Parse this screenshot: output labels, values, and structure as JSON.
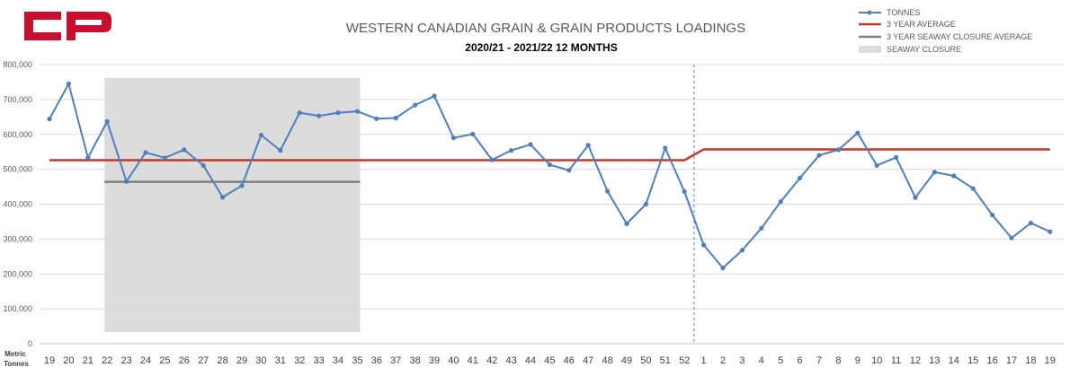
{
  "logo_text": "CP",
  "colors": {
    "tonnes": "#4f7fbd",
    "three_year_avg": "#c0392b",
    "seaway_avg": "#808080",
    "seaway_closure": "#dcdcdc",
    "logo": "#c8102e",
    "grid": "#d9d9d9"
  },
  "chart_data": {
    "type": "line",
    "title": "WESTERN CANADIAN GRAIN & GRAIN PRODUCTS LOADINGS",
    "subtitle": "2020/21 - 2021/22 12 MONTHS",
    "ylabel": "Metric Tonnes",
    "ylim": [
      0,
      800000
    ],
    "yticks": [
      "0",
      "100,000",
      "200,000",
      "300,000",
      "400,000",
      "500,000",
      "600,000",
      "700,000",
      "800,000"
    ],
    "grid": true,
    "legend_position": "top-right",
    "categories": [
      "19",
      "20",
      "21",
      "22",
      "23",
      "24",
      "25",
      "26",
      "27",
      "28",
      "29",
      "30",
      "31",
      "32",
      "33",
      "34",
      "35",
      "36",
      "37",
      "38",
      "39",
      "40",
      "41",
      "42",
      "43",
      "44",
      "45",
      "46",
      "47",
      "48",
      "49",
      "50",
      "51",
      "52",
      "1",
      "2",
      "3",
      "4",
      "5",
      "6",
      "7",
      "8",
      "9",
      "10",
      "11",
      "12",
      "13",
      "14",
      "15",
      "16",
      "17",
      "18",
      "19"
    ],
    "series": [
      {
        "name": "TONNES",
        "type": "line-markers",
        "values": [
          644000,
          745000,
          533000,
          637000,
          465000,
          548000,
          533000,
          556000,
          511000,
          420000,
          453000,
          598000,
          554000,
          662000,
          653000,
          662000,
          666000,
          645000,
          647000,
          684000,
          710000,
          590000,
          601000,
          527000,
          554000,
          571000,
          513000,
          497000,
          569000,
          437000,
          344000,
          400000,
          561000,
          436000,
          283000,
          217000,
          268000,
          331000,
          407000,
          475000,
          540000,
          556000,
          604000,
          511000,
          534000,
          419000,
          492000,
          481000,
          445000,
          369000,
          303000,
          346000,
          321000
        ]
      },
      {
        "name": "3 YEAR AVERAGE",
        "type": "line",
        "values": [
          526000,
          526000,
          526000,
          526000,
          526000,
          526000,
          526000,
          526000,
          526000,
          526000,
          526000,
          526000,
          526000,
          526000,
          526000,
          526000,
          526000,
          526000,
          526000,
          526000,
          526000,
          526000,
          526000,
          526000,
          526000,
          526000,
          526000,
          526000,
          526000,
          526000,
          526000,
          526000,
          526000,
          526000,
          557000,
          557000,
          557000,
          557000,
          557000,
          557000,
          557000,
          557000,
          557000,
          557000,
          557000,
          557000,
          557000,
          557000,
          557000,
          557000,
          557000,
          557000,
          557000
        ]
      },
      {
        "name": "3 YEAR SEAWAY CLOSURE AVERAGE",
        "type": "line",
        "start": "22",
        "end": "35",
        "value": 464000
      },
      {
        "name": "SEAWAY CLOSURE",
        "type": "shaded-region",
        "start": "22",
        "end": "35"
      }
    ],
    "year_divider_after": "52"
  }
}
